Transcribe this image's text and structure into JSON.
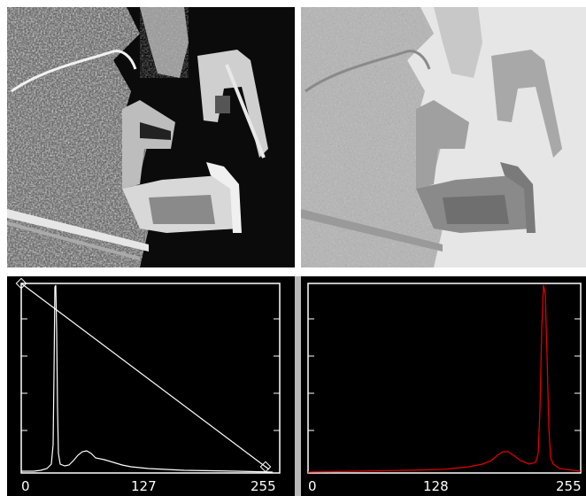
{
  "left_image": {
    "kind": "satellite-image-original",
    "style": "dark high-contrast"
  },
  "right_image": {
    "kind": "satellite-image-inverted",
    "style": "light low-contrast"
  },
  "left_histogram": {
    "line_color": "#ffffff",
    "x_tick_labels": [
      "0",
      "127",
      "255"
    ],
    "has_transfer_line": true
  },
  "right_histogram": {
    "line_color": "#e00000",
    "x_tick_labels": [
      "0",
      "128",
      "255"
    ],
    "has_transfer_line": false
  }
}
